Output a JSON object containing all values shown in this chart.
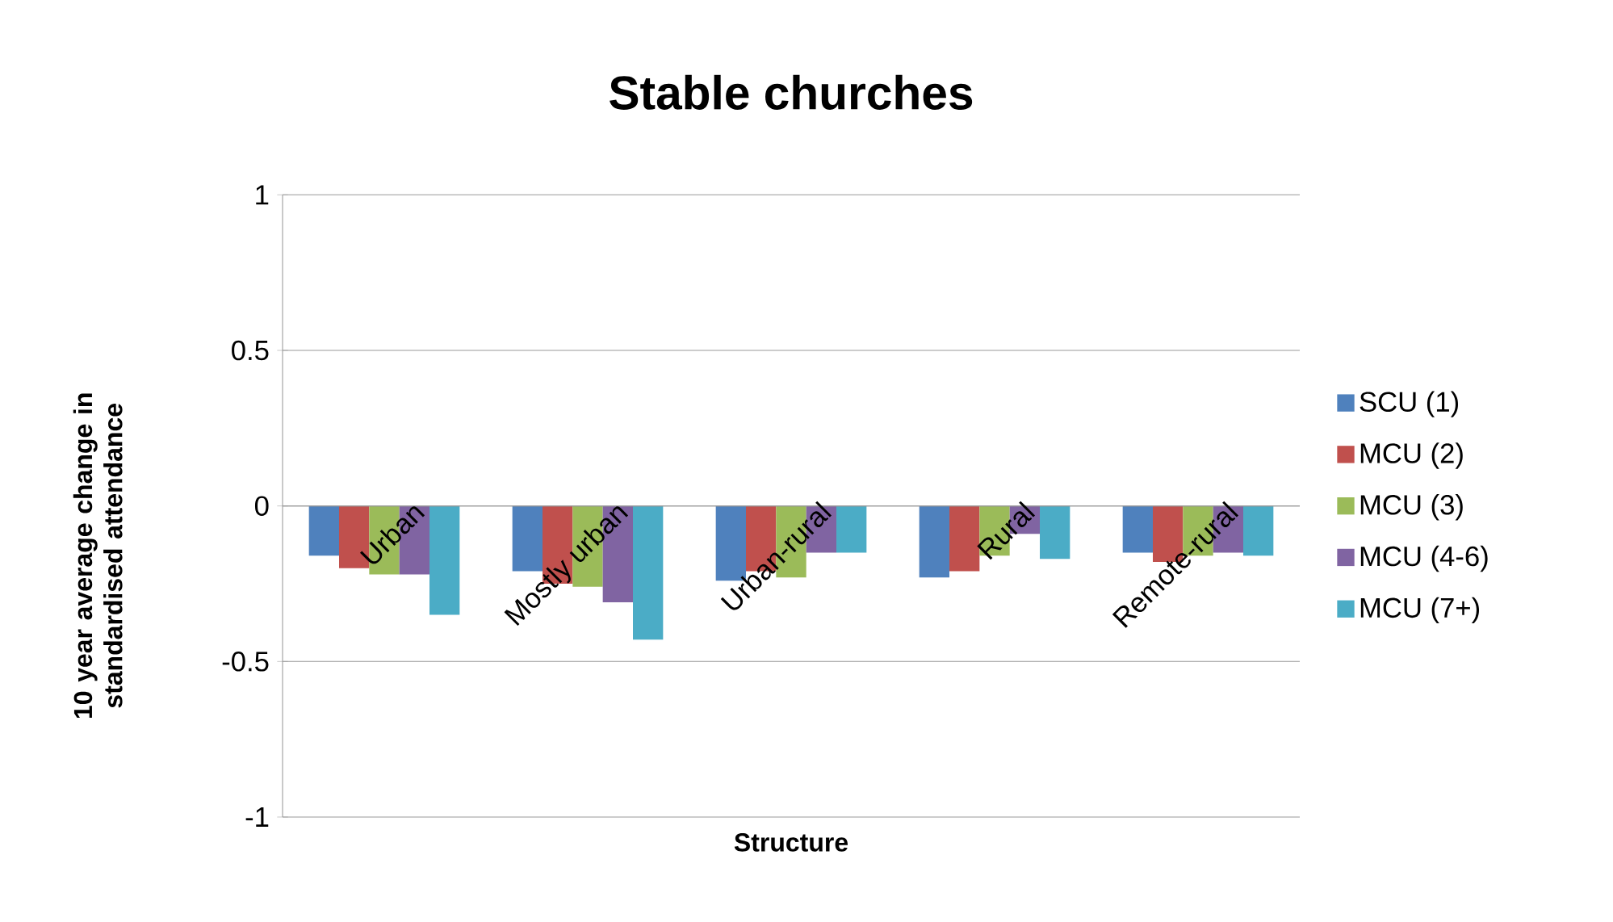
{
  "chart_data": {
    "type": "bar",
    "title": "Stable churches",
    "xlabel": "Structure",
    "ylabel": "10 year average change in standardised attendance",
    "categories": [
      "Urban",
      "Mostly urban",
      "Urban-rural",
      "Rural",
      "Remote-rural"
    ],
    "series": [
      {
        "name": "SCU (1)",
        "color": "#4f81bd",
        "values": [
          -0.16,
          -0.21,
          -0.24,
          -0.23,
          -0.15
        ]
      },
      {
        "name": "MCU (2)",
        "color": "#c0504d",
        "values": [
          -0.2,
          -0.25,
          -0.21,
          -0.21,
          -0.18
        ]
      },
      {
        "name": "MCU (3)",
        "color": "#9bbb59",
        "values": [
          -0.22,
          -0.26,
          -0.23,
          -0.16,
          -0.16
        ]
      },
      {
        "name": "MCU (4-6)",
        "color": "#8064a2",
        "values": [
          -0.22,
          -0.31,
          -0.15,
          -0.09,
          -0.15
        ]
      },
      {
        "name": "MCU (7+)",
        "color": "#4bacc6",
        "values": [
          -0.35,
          -0.43,
          -0.15,
          -0.17,
          -0.16
        ]
      }
    ],
    "ylim": [
      -1,
      1
    ],
    "yticks": [
      -1,
      -0.5,
      0,
      0.5,
      1
    ],
    "grid": "y",
    "legend": "right"
  }
}
